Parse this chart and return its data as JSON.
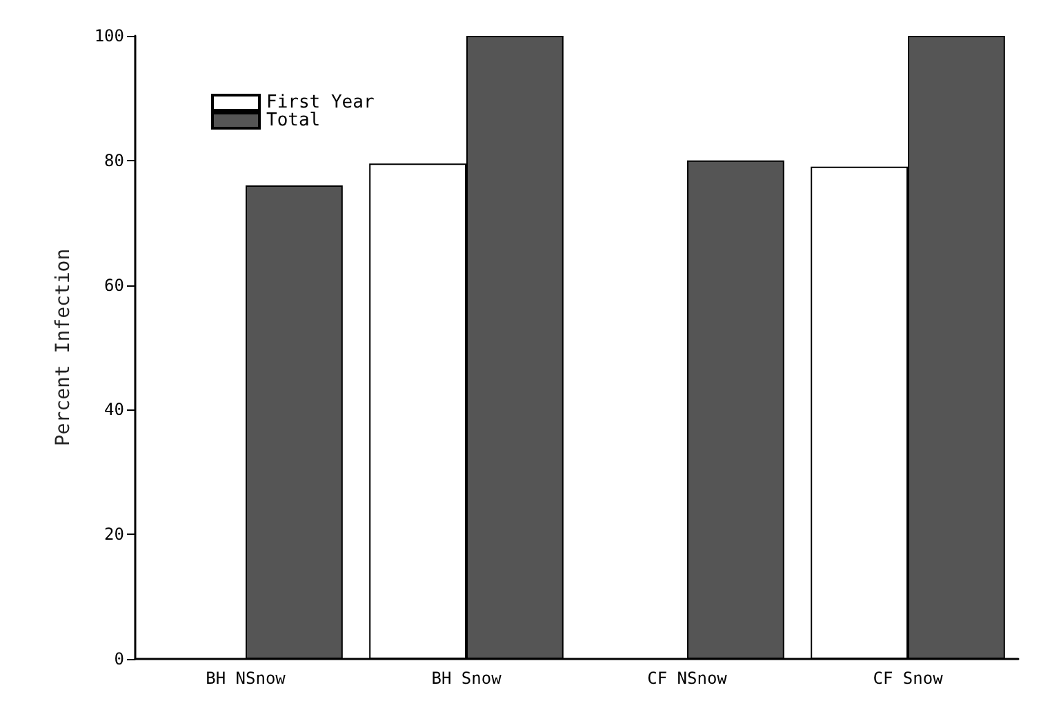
{
  "chart_data": {
    "type": "bar",
    "ylabel": "Percent Infection",
    "categories": [
      "BH NSnow",
      "BH Snow",
      "CF NSnow",
      "CF Snow"
    ],
    "series": [
      {
        "name": "First Year",
        "color": "#ffffff",
        "values": [
          null,
          79.5,
          null,
          79
        ]
      },
      {
        "name": "Total",
        "color": "#555555",
        "values": [
          76,
          100,
          80,
          100
        ]
      }
    ],
    "ylim": [
      0,
      100
    ],
    "yticks": [
      0,
      20,
      40,
      60,
      80,
      100
    ],
    "grid": false,
    "legend": "top left"
  }
}
